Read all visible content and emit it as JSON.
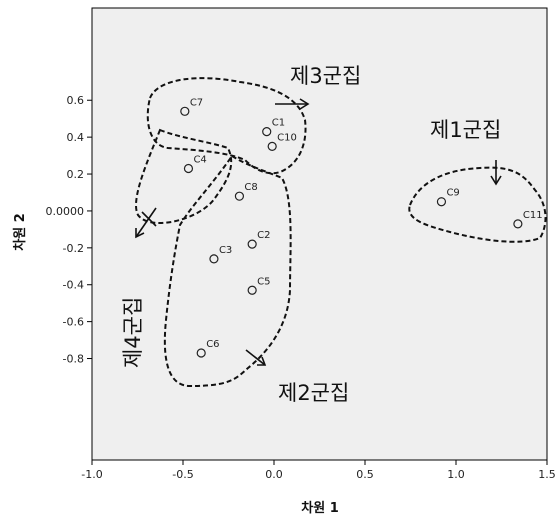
{
  "chart_data": {
    "type": "scatter",
    "xlabel": "차원 1",
    "ylabel": "차원 2",
    "xlim": [
      -1.0,
      1.5
    ],
    "ylim": [
      -1.35,
      1.1
    ],
    "x_ticks": [
      "-1.0",
      "-0.5",
      "0.0",
      "0.5",
      "1.0",
      "1.5"
    ],
    "x_tick_values": [
      -1.0,
      -0.5,
      0.0,
      0.5,
      1.0,
      1.5
    ],
    "y_ticks": [
      "0.6",
      "0.4",
      "0.2",
      "0.0000",
      "-0.2",
      "-0.4",
      "-0.6",
      "-0.8"
    ],
    "y_tick_values": [
      0.6,
      0.4,
      0.2,
      0.0,
      -0.2,
      -0.4,
      -0.6,
      -0.8
    ],
    "grid": false,
    "background_color": "#efefef",
    "marker": "open-circle",
    "points": [
      {
        "label": "C7",
        "x": -0.49,
        "y": 0.54
      },
      {
        "label": "C1",
        "x": -0.04,
        "y": 0.43
      },
      {
        "label": "C10",
        "x": -0.01,
        "y": 0.35
      },
      {
        "label": "C4",
        "x": -0.47,
        "y": 0.23
      },
      {
        "label": "C8",
        "x": -0.19,
        "y": 0.08
      },
      {
        "label": "C2",
        "x": -0.12,
        "y": -0.18
      },
      {
        "label": "C3",
        "x": -0.33,
        "y": -0.26
      },
      {
        "label": "C5",
        "x": -0.12,
        "y": -0.43
      },
      {
        "label": "C6",
        "x": -0.4,
        "y": -0.77
      },
      {
        "label": "C9",
        "x": 0.92,
        "y": 0.05
      },
      {
        "label": "C11",
        "x": 1.34,
        "y": -0.07
      }
    ],
    "clusters": [
      {
        "label": "제1군집",
        "members": [
          "C9",
          "C11"
        ]
      },
      {
        "label": "제2군집",
        "members": [
          "C8",
          "C2",
          "C3",
          "C5",
          "C6"
        ]
      },
      {
        "label": "제3군집",
        "members": [
          "C7",
          "C1",
          "C10"
        ]
      },
      {
        "label": "제4군집",
        "members": [
          "C4"
        ]
      }
    ]
  }
}
